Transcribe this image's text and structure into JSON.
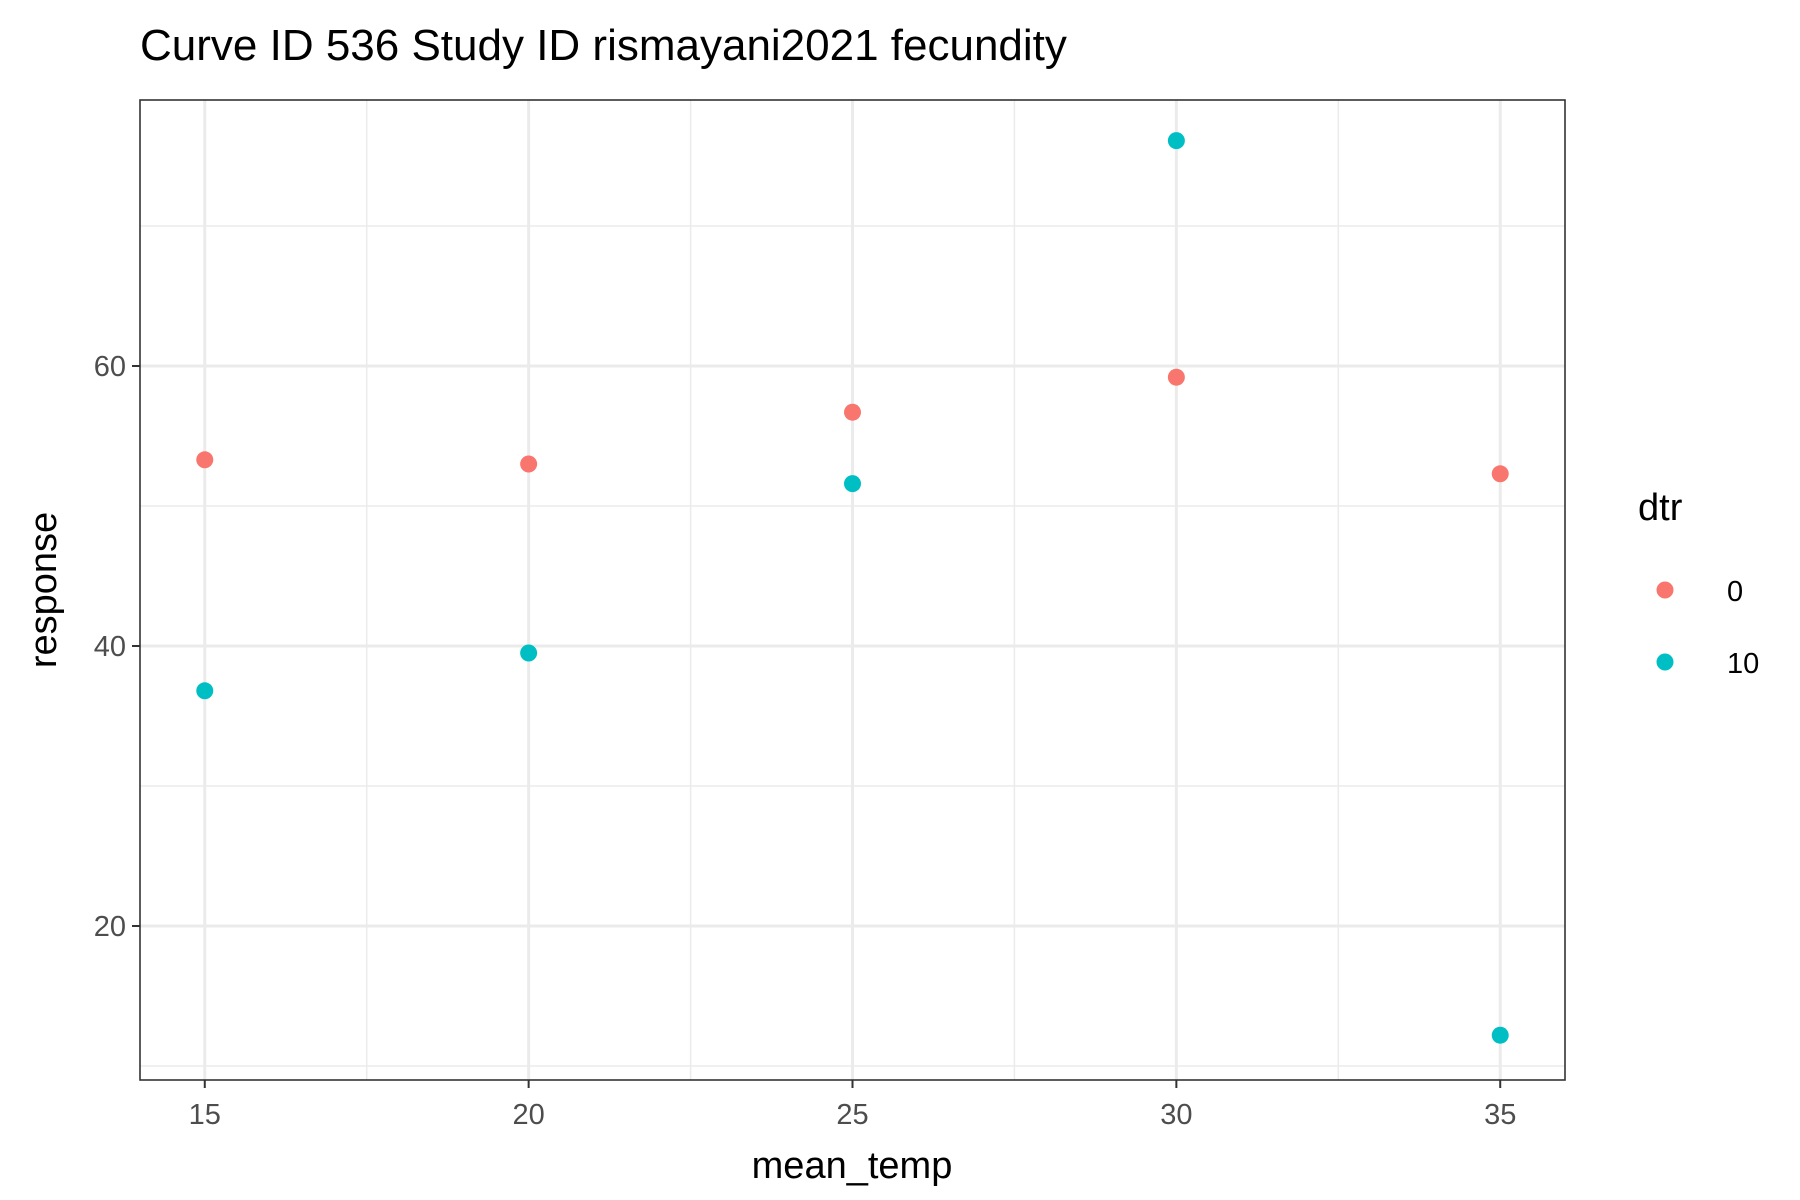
{
  "chart_data": {
    "type": "scatter",
    "title": "Curve ID 536 Study ID rismayani2021 fecundity",
    "xlabel": "mean_temp",
    "ylabel": "response",
    "xlim": [
      14,
      36
    ],
    "ylim": [
      9,
      79
    ],
    "x_ticks": [
      15,
      20,
      25,
      30,
      35
    ],
    "x_tick_labels": [
      "15",
      "20",
      "25",
      "30",
      "35"
    ],
    "x_minor": [
      17.5,
      22.5,
      27.5,
      32.5
    ],
    "y_ticks": [
      20,
      40,
      60
    ],
    "y_tick_labels": [
      "20",
      "40",
      "60"
    ],
    "y_minor": [
      10,
      30,
      50,
      70
    ],
    "grid": true,
    "legend": {
      "title": "dtr",
      "position": "right"
    },
    "series": [
      {
        "name": "0",
        "color": "#F8766D",
        "x": [
          15,
          20,
          25,
          30,
          35
        ],
        "y": [
          53.3,
          53.0,
          56.7,
          59.2,
          52.3
        ]
      },
      {
        "name": "10",
        "color": "#00BFC4",
        "x": [
          15,
          20,
          25,
          30,
          35
        ],
        "y": [
          36.8,
          39.5,
          51.6,
          76.1,
          12.2
        ]
      }
    ]
  }
}
